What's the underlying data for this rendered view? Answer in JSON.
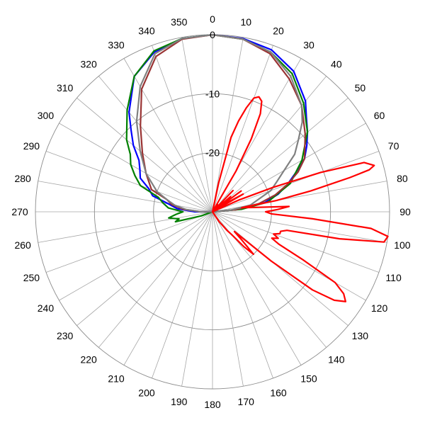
{
  "chart_data": {
    "type": "line",
    "projection": "polar",
    "title": "",
    "angle_unit": "degrees",
    "angle_direction": "clockwise",
    "zero_direction": "top",
    "angle_tick_labels": [
      "0",
      "10",
      "20",
      "30",
      "40",
      "50",
      "60",
      "70",
      "80",
      "90",
      "100",
      "110",
      "120",
      "130",
      "140",
      "150",
      "160",
      "170",
      "180",
      "190",
      "200",
      "210",
      "220",
      "230",
      "240",
      "250",
      "260",
      "270",
      "280",
      "290",
      "300",
      "310",
      "320",
      "330",
      "340",
      "350"
    ],
    "radial_unit": "dB",
    "radial_range": [
      -30,
      0
    ],
    "radial_tick_labels": [
      "0",
      "-10",
      "-20"
    ],
    "radial_tick_values": [
      0,
      -10,
      -20
    ],
    "grid": true,
    "legend": false,
    "series": [
      {
        "color": "#0000ff",
        "angles": [
          0,
          10,
          20,
          30,
          40,
          45,
          50,
          55,
          60,
          65,
          70,
          75,
          80,
          85,
          90,
          100,
          180,
          260,
          270,
          275,
          280,
          285,
          290,
          295,
          300,
          305,
          310,
          315,
          320,
          330,
          340,
          350
        ],
        "values": [
          0,
          -0.2,
          -0.8,
          -2.5,
          -5.5,
          -7.5,
          -9,
          -10.5,
          -12,
          -14.5,
          -16.5,
          -18.5,
          -21,
          -26,
          -30,
          -30,
          -30,
          -30,
          -27,
          -24,
          -22.5,
          -19.5,
          -18.5,
          -16.5,
          -15.8,
          -14.8,
          -12.5,
          -10.5,
          -8,
          -3.5,
          -1.2,
          -0.2
        ]
      },
      {
        "color": "#008000",
        "angles": [
          0,
          10,
          20,
          30,
          40,
          50,
          60,
          70,
          80,
          85,
          90,
          180,
          250,
          255,
          258,
          262,
          266,
          270,
          275,
          280,
          285,
          290,
          295,
          300,
          305,
          310,
          320,
          330,
          340,
          350
        ],
        "values": [
          0,
          -0.3,
          -1.2,
          -3,
          -6,
          -9,
          -12.5,
          -16,
          -20.5,
          -25,
          -30,
          -30,
          -28,
          -23.5,
          -24.2,
          -22.5,
          -23.8,
          -25,
          -22.5,
          -21.5,
          -20.5,
          -17,
          -15.5,
          -14,
          -13,
          -11,
          -7.5,
          -3.5,
          -1,
          -0.2
        ]
      },
      {
        "color": "#993333",
        "angles": [
          0,
          10,
          20,
          30,
          40,
          50,
          60,
          65,
          70,
          75,
          80,
          85,
          90,
          180,
          260,
          270,
          275,
          280,
          285,
          290,
          300,
          310,
          320,
          330,
          340,
          350
        ],
        "values": [
          0,
          -0.3,
          -1.5,
          -4,
          -6.5,
          -9.5,
          -12,
          -14,
          -16.5,
          -19,
          -22,
          -26,
          -30,
          -30,
          -30,
          -28,
          -25,
          -23,
          -22,
          -19,
          -17,
          -14.5,
          -11,
          -6,
          -2,
          -0.3
        ]
      },
      {
        "color": "#808080",
        "angles": [
          0,
          10,
          20,
          30,
          40,
          45,
          50,
          55,
          60,
          65,
          70,
          75,
          80,
          85,
          90,
          180,
          270,
          275,
          280,
          285,
          290,
          300,
          310,
          320,
          330,
          340,
          350
        ],
        "values": [
          0,
          -0.3,
          -1.2,
          -3.5,
          -6.5,
          -8.5,
          -11,
          -13,
          -16,
          -18,
          -19.5,
          -22,
          -23.5,
          -27,
          -30,
          -30,
          -28,
          -25.5,
          -23.5,
          -22,
          -20,
          -17,
          -14,
          -10,
          -5.5,
          -1.5,
          -0.2
        ]
      },
      {
        "color": "#ff0000",
        "angles": [
          10,
          12,
          14,
          16,
          18,
          20,
          22,
          24,
          26,
          28,
          30,
          32,
          34,
          36,
          40,
          44,
          48,
          50,
          52,
          54,
          56,
          58,
          60,
          64,
          66,
          68,
          70,
          72,
          74,
          75,
          76,
          78,
          80,
          82,
          84,
          86,
          88,
          90,
          92,
          94,
          96,
          98,
          100,
          102,
          104,
          106,
          108,
          110,
          112,
          114,
          116,
          118,
          120,
          122,
          124,
          126,
          128,
          130,
          132,
          134,
          136,
          138,
          140,
          142,
          146,
          150,
          155
        ],
        "values": [
          -30,
          -25,
          -17,
          -14,
          -11.5,
          -9.5,
          -9,
          -9.5,
          -11.5,
          -16,
          -22,
          -30,
          -28.5,
          -30,
          -30,
          -25,
          -30,
          -26,
          -30,
          -24,
          -30,
          -27,
          -24,
          -30,
          -25,
          -19,
          -10.5,
          -3,
          -1.5,
          -2.5,
          -6,
          -13,
          -19,
          -25,
          -23,
          -17,
          -19,
          -21,
          -20,
          -13,
          -3,
          0,
          -0.5,
          -8,
          -17,
          -18,
          -18,
          -19,
          -18,
          -19,
          -17.5,
          -12.5,
          -6,
          -3.8,
          -2.8,
          -4.5,
          -8.5,
          -17,
          -25,
          -23,
          -20,
          -22,
          -25,
          -26,
          -28,
          -30,
          -30
        ]
      }
    ]
  }
}
